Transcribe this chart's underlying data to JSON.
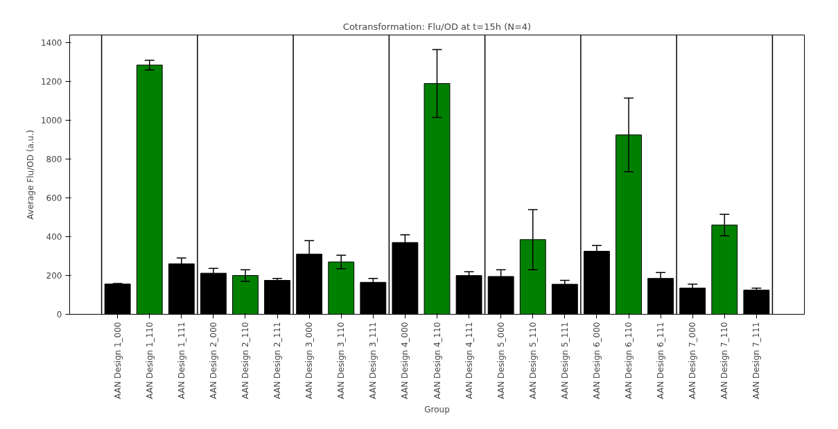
{
  "chart_data": {
    "type": "bar",
    "title": "Cotransformation: Flu/OD at t=15h (N=4)",
    "xlabel": "Group",
    "ylabel": "Average Flu/OD (a.u.)",
    "categories": [
      "AAN Design 1_000",
      "AAN Design 1_110",
      "AAN Design 1_111",
      "AAN Design 2_000",
      "AAN Design 2_110",
      "AAN Design 2_111",
      "AAN Design 3_000",
      "AAN Design 3_110",
      "AAN Design 3_111",
      "AAN Design 4_000",
      "AAN Design 4_110",
      "AAN Design 4_111",
      "AAN Design 5_000",
      "AAN Design 5_110",
      "AAN Design 5_111",
      "AAN Design 6_000",
      "AAN Design 6_110",
      "AAN Design 6_111",
      "AAN Design 7_000",
      "AAN Design 7_110",
      "AAN Design 7_111"
    ],
    "values": [
      156,
      1285,
      260,
      212,
      200,
      175,
      310,
      270,
      165,
      370,
      1190,
      200,
      195,
      385,
      155,
      325,
      925,
      185,
      135,
      460,
      125
    ],
    "errors": [
      3,
      25,
      30,
      25,
      30,
      10,
      70,
      35,
      20,
      40,
      175,
      20,
      35,
      155,
      20,
      30,
      190,
      30,
      20,
      55,
      10
    ],
    "colors": [
      "#000000",
      "#008000",
      "#000000",
      "#000000",
      "#008000",
      "#000000",
      "#000000",
      "#008000",
      "#000000",
      "#000000",
      "#008000",
      "#000000",
      "#000000",
      "#008000",
      "#000000",
      "#000000",
      "#008000",
      "#000000",
      "#000000",
      "#008000",
      "#000000"
    ],
    "ylim": [
      0,
      1440
    ],
    "yticks": [
      0,
      200,
      400,
      600,
      800,
      1000,
      1200,
      1400
    ],
    "grid": false
  }
}
